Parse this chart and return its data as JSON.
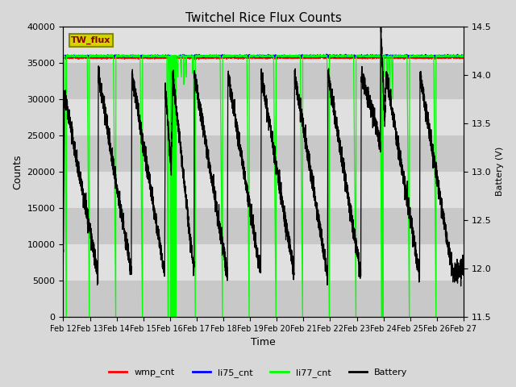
{
  "title": "Twitchel Rice Flux Counts",
  "xlabel": "Time",
  "ylabel_left": "Counts",
  "ylabel_right": "Battery (V)",
  "ylim_left": [
    0,
    40000
  ],
  "ylim_right": [
    11.5,
    14.5
  ],
  "yticks_left": [
    0,
    5000,
    10000,
    15000,
    20000,
    25000,
    30000,
    35000,
    40000
  ],
  "yticks_right": [
    11.5,
    12.0,
    12.5,
    13.0,
    13.5,
    14.0,
    14.5
  ],
  "xtick_labels": [
    "Feb 12",
    "Feb 13",
    "Feb 14",
    "Feb 15",
    "Feb 16",
    "Feb 17",
    "Feb 18",
    "Feb 19",
    "Feb 20",
    "Feb 21",
    "Feb 22",
    "Feb 23",
    "Feb 24",
    "Feb 25",
    "Feb 26",
    "Feb 27"
  ],
  "legend_entries": [
    "wmp_cnt",
    "li75_cnt",
    "li77_cnt",
    "Battery"
  ],
  "text_box_label": "TW_flux",
  "text_box_color": "#d4d400",
  "band_colors": [
    "#d0d0d0",
    "#e8e8e8",
    "#d0d0d0",
    "#e8e8e8",
    "#d0d0d0",
    "#e8e8e8",
    "#d0d0d0",
    "#e8e8e8"
  ],
  "fig_bg": "#d8d8d8",
  "wmp_value": 35700,
  "li75_value": 35900,
  "li77_value": 35900,
  "n_points": 5000
}
